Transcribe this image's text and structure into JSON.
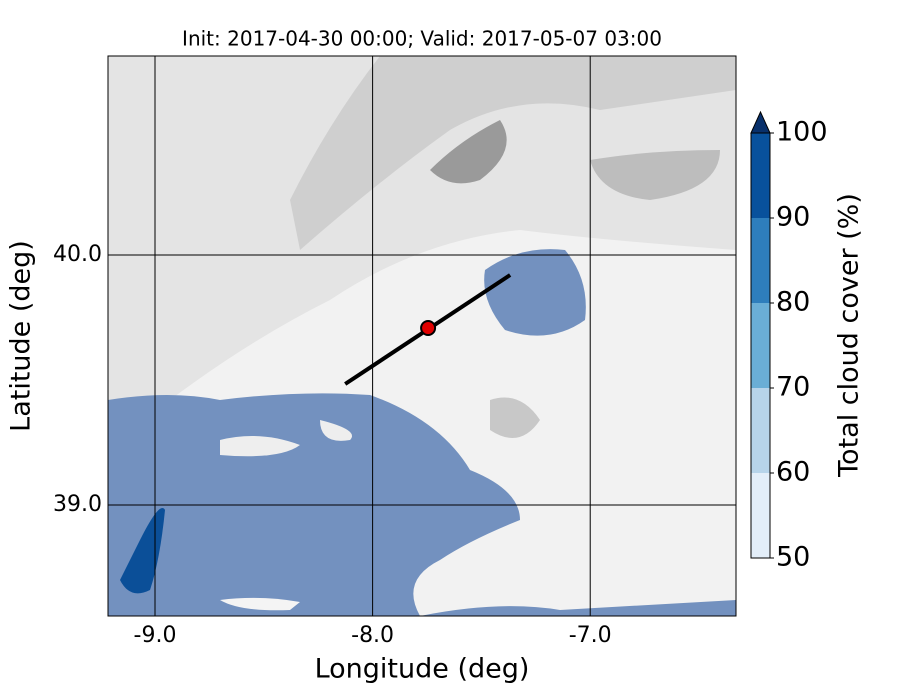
{
  "chart_data": {
    "type": "map",
    "title": "Init: 2017-04-30 00:00; Valid: 2017-05-07 03:00",
    "xlabel": "Longitude (deg)",
    "ylabel": "Latitude (deg)",
    "xlim": [
      -9.216,
      -6.33
    ],
    "ylim": [
      38.556,
      40.796
    ],
    "xticks": [
      {
        "value": -9,
        "label": "-9.0"
      },
      {
        "value": -8,
        "label": "-8.0"
      },
      {
        "value": -7,
        "label": "-7.0"
      }
    ],
    "yticks": [
      {
        "value": 39,
        "label": "39.0"
      },
      {
        "value": 40,
        "label": "40.0"
      }
    ],
    "grid": true,
    "colorbar": {
      "label": "Total cloud cover (%)",
      "lim": [
        50,
        100
      ],
      "ticks": [
        50,
        60,
        70,
        80,
        90,
        100
      ],
      "colors": [
        "#e3eef9",
        "#b7d4ea",
        "#6aaed6",
        "#2e7ebc",
        "#08519c"
      ],
      "extend_color": "#08306b"
    },
    "section": {
      "lon": [
        -8.126,
        -7.368
      ],
      "lat": [
        39.484,
        39.92
      ]
    },
    "point": {
      "lon": -7.745,
      "lat": 39.708
    }
  }
}
